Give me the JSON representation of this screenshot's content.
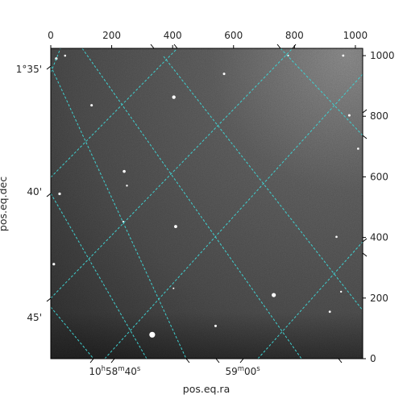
{
  "chart_data": {
    "type": "image-wcs",
    "xlabel": "pos.eq.ra",
    "ylabel": "pos.eq.dec",
    "pixel_axes": {
      "x_ticks": [
        0,
        200,
        400,
        600,
        800,
        1000
      ],
      "y_ticks": [
        0,
        200,
        400,
        600,
        800,
        1000
      ],
      "xlim": [
        0,
        1024
      ],
      "ylim": [
        0,
        1024
      ]
    },
    "ra_ticks": [
      {
        "label_main": "10",
        "label_sup": "h",
        "label_main2": "58",
        "label_sup2": "m",
        "label_main3": "40",
        "label_sup3": "s",
        "x": 210
      },
      {
        "label_main": "59",
        "label_sup": "m",
        "label_main2": "00",
        "label_sup2": "s",
        "x": 630
      }
    ],
    "dec_ticks": [
      {
        "label": "1°35'",
        "y": 955
      },
      {
        "label": "40'",
        "y": 550
      },
      {
        "label": "45'",
        "y": 135
      }
    ],
    "grid": true,
    "grid_color": "#3fd0d0",
    "colormap": "gray",
    "stars": [
      {
        "x": 333,
        "y": 79,
        "r": 3.6
      },
      {
        "x": 732,
        "y": 210,
        "r": 2.6
      },
      {
        "x": 404,
        "y": 863,
        "r": 2.2
      },
      {
        "x": 410,
        "y": 436,
        "r": 1.9
      },
      {
        "x": 241,
        "y": 618,
        "r": 1.8
      },
      {
        "x": 29,
        "y": 544,
        "r": 1.6
      },
      {
        "x": 134,
        "y": 836,
        "r": 1.5
      },
      {
        "x": 569,
        "y": 940,
        "r": 1.5
      },
      {
        "x": 980,
        "y": 803,
        "r": 1.5
      },
      {
        "x": 1009,
        "y": 693,
        "r": 1.3
      },
      {
        "x": 10,
        "y": 312,
        "r": 1.6
      },
      {
        "x": 18,
        "y": 990,
        "r": 1.6
      },
      {
        "x": 960,
        "y": 1000,
        "r": 1.4
      },
      {
        "x": 779,
        "y": 1000,
        "r": 1.2
      },
      {
        "x": 938,
        "y": 402,
        "r": 1.3
      },
      {
        "x": 916,
        "y": 155,
        "r": 1.4
      },
      {
        "x": 250,
        "y": 571,
        "r": 1.2
      },
      {
        "x": 238,
        "y": 452,
        "r": 1.2
      },
      {
        "x": 541,
        "y": 108,
        "r": 1.5
      },
      {
        "x": 953,
        "y": 221,
        "r": 1.2
      },
      {
        "x": 403,
        "y": 232,
        "r": 1.0
      },
      {
        "x": 47,
        "y": 1000,
        "r": 1.3
      }
    ]
  }
}
